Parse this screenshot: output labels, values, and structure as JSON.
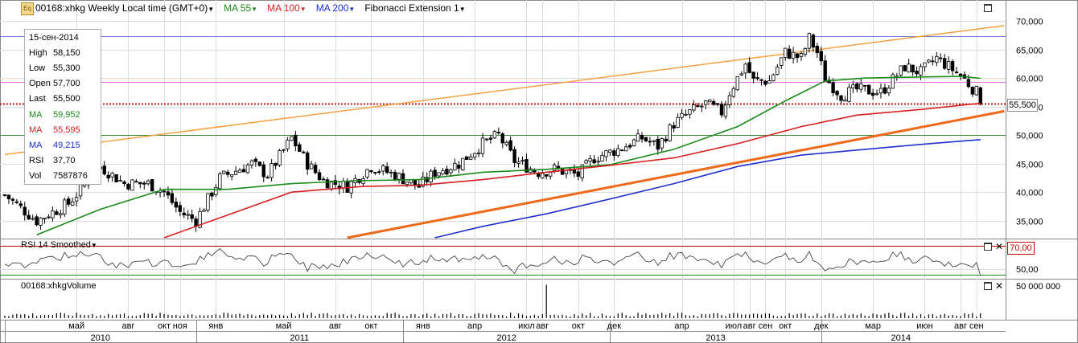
{
  "header": {
    "symbol_title": "00168:xhkg Weekly Local time (GMT+0)",
    "ma55_label": "MA 55",
    "ma100_label": "MA 100",
    "ma200_label": "MA 200",
    "fib_label": "Fibonacci Extension 1",
    "logo_text": "Eq"
  },
  "infobox": {
    "date": "15-сен-2014",
    "rows": [
      {
        "k": "High",
        "v": "58,150",
        "color": "#000000"
      },
      {
        "k": "Low",
        "v": "55,300",
        "color": "#000000"
      },
      {
        "k": "Open",
        "v": "57,700",
        "color": "#000000"
      },
      {
        "k": "Last",
        "v": "55,500",
        "color": "#000000"
      },
      {
        "k": "MA",
        "v": "59,952",
        "color": "#1a8a1a"
      },
      {
        "k": "MA",
        "v": "55,595",
        "color": "#d81e1e"
      },
      {
        "k": "MA",
        "v": "49,215",
        "color": "#1f2fd0"
      },
      {
        "k": "RSI",
        "v": "37,70",
        "color": "#000000"
      },
      {
        "k": "Vol",
        "v": "7587876",
        "color": "#000000"
      }
    ]
  },
  "price_marker": "55,500",
  "rsi_panel": {
    "title": "RSI 14 Smoothed",
    "marker": "70,00",
    "ticks": [
      "50,00"
    ]
  },
  "volume_panel": {
    "title": "00168:xhkgVolume",
    "ticks": [
      "50 000 000"
    ]
  },
  "colors": {
    "ma55": "#1a8a1a",
    "ma100": "#d81e1e",
    "ma200": "#1f2fd0",
    "fib_upper": "#f5a040",
    "fib_lower": "#ee6a1a",
    "rsi": "#444444",
    "up": "#ffffff",
    "down": "#000000"
  },
  "chart_data": [
    {
      "type": "candlestick",
      "title": "00168:xhkg Weekly",
      "ylim": [
        32000,
        72000
      ],
      "y_ticks": [
        "35,000",
        "40,000",
        "45,000",
        "50,000",
        "55,000",
        "60,000",
        "65,000",
        "70,000"
      ],
      "y_tick_values": [
        35000,
        40000,
        45000,
        50000,
        55000,
        60000,
        65000,
        70000
      ],
      "x_months": [
        {
          "label": "май",
          "w": 18
        },
        {
          "label": "авг",
          "w": 31
        },
        {
          "label": "окт",
          "w": 40
        },
        {
          "label": "ноя",
          "w": 44
        },
        {
          "label": "янв",
          "w": 53
        },
        {
          "label": "май",
          "w": 70
        },
        {
          "label": "авг",
          "w": 83
        },
        {
          "label": "окт",
          "w": 92
        },
        {
          "label": "янв",
          "w": 105
        },
        {
          "label": "апр",
          "w": 118
        },
        {
          "label": "июл",
          "w": 131
        },
        {
          "label": "авг",
          "w": 135
        },
        {
          "label": "окт",
          "w": 144
        },
        {
          "label": "дек",
          "w": 153
        },
        {
          "label": "апр",
          "w": 170
        },
        {
          "label": "июл",
          "w": 183
        },
        {
          "label": "авг",
          "w": 187
        },
        {
          "label": "сен",
          "w": 191
        },
        {
          "label": "окт",
          "w": 196
        },
        {
          "label": "дек",
          "w": 205
        },
        {
          "label": "мар",
          "w": 218
        },
        {
          "label": "июн",
          "w": 231
        },
        {
          "label": "авг",
          "w": 240
        },
        {
          "label": "сен",
          "w": 244
        }
      ],
      "x_years": [
        {
          "label": "2010",
          "w0": 0,
          "w1": 48
        },
        {
          "label": "2011",
          "w0": 48,
          "w1": 100
        },
        {
          "label": "2012",
          "w0": 100,
          "w1": 152
        },
        {
          "label": "2013",
          "w0": 152,
          "w1": 205
        },
        {
          "label": "2014",
          "w0": 205,
          "w1": 245
        }
      ],
      "close_anchors": [
        [
          0,
          39500
        ],
        [
          8,
          35000
        ],
        [
          16,
          38000
        ],
        [
          24,
          44500
        ],
        [
          30,
          41500
        ],
        [
          36,
          41500
        ],
        [
          40,
          40000
        ],
        [
          44,
          36500
        ],
        [
          48,
          35000
        ],
        [
          54,
          42500
        ],
        [
          62,
          45000
        ],
        [
          66,
          43000
        ],
        [
          72,
          49500
        ],
        [
          76,
          45000
        ],
        [
          80,
          42000
        ],
        [
          86,
          41000
        ],
        [
          92,
          44500
        ],
        [
          98,
          43000
        ],
        [
          104,
          41000
        ],
        [
          108,
          43500
        ],
        [
          114,
          45000
        ],
        [
          120,
          48500
        ],
        [
          124,
          50000
        ],
        [
          128,
          45500
        ],
        [
          134,
          43500
        ],
        [
          138,
          44000
        ],
        [
          144,
          43000
        ],
        [
          148,
          46000
        ],
        [
          154,
          47500
        ],
        [
          160,
          49500
        ],
        [
          164,
          48000
        ],
        [
          168,
          52000
        ],
        [
          172,
          54000
        ],
        [
          176,
          55500
        ],
        [
          180,
          54000
        ],
        [
          182,
          57500
        ],
        [
          186,
          62500
        ],
        [
          188,
          59500
        ],
        [
          192,
          59500
        ],
        [
          196,
          64500
        ],
        [
          200,
          63500
        ],
        [
          202,
          67000
        ],
        [
          204,
          64500
        ],
        [
          206,
          60000
        ],
        [
          210,
          57000
        ],
        [
          214,
          58000
        ],
        [
          220,
          57500
        ],
        [
          226,
          62000
        ],
        [
          230,
          61000
        ],
        [
          234,
          63500
        ],
        [
          238,
          61500
        ],
        [
          240,
          60500
        ],
        [
          242,
          59000
        ],
        [
          244,
          57500
        ],
        [
          245,
          55500
        ]
      ],
      "ma_series": [
        {
          "name": "MA 55",
          "points": [
            [
              8,
              32500
            ],
            [
              24,
              37000
            ],
            [
              40,
              40500
            ],
            [
              56,
              40500
            ],
            [
              72,
              41500
            ],
            [
              88,
              42000
            ],
            [
              104,
              42200
            ],
            [
              120,
              43500
            ],
            [
              136,
              44000
            ],
            [
              152,
              44800
            ],
            [
              168,
              47500
            ],
            [
              184,
              51500
            ],
            [
              196,
              56000
            ],
            [
              206,
              59500
            ],
            [
              216,
              60000
            ],
            [
              230,
              60200
            ],
            [
              240,
              60300
            ],
            [
              245,
              59952
            ]
          ]
        },
        {
          "name": "MA 100",
          "points": [
            [
              40,
              32000
            ],
            [
              56,
              36000
            ],
            [
              72,
              40000
            ],
            [
              90,
              41000
            ],
            [
              104,
              41200
            ],
            [
              120,
              42200
            ],
            [
              136,
              43500
            ],
            [
              152,
              44700
            ],
            [
              168,
              46000
            ],
            [
              184,
              48500
            ],
            [
              200,
              51500
            ],
            [
              214,
              53500
            ],
            [
              230,
              54500
            ],
            [
              245,
              55595
            ]
          ]
        },
        {
          "name": "MA 200",
          "points": [
            [
              108,
              32000
            ],
            [
              120,
              34000
            ],
            [
              136,
              36200
            ],
            [
              152,
              38800
            ],
            [
              168,
              41500
            ],
            [
              184,
              44500
            ],
            [
              200,
              46500
            ],
            [
              216,
              47500
            ],
            [
              232,
              48500
            ],
            [
              245,
              49215
            ]
          ]
        }
      ],
      "fibonacci": [
        {
          "from": [
            0,
            46600
          ],
          "to": [
            251,
            69200
          ]
        },
        {
          "from": [
            86,
            32000
          ],
          "to": [
            251,
            54200
          ]
        }
      ],
      "horizontal_levels": [
        {
          "value": 67300,
          "color": "#6e7cd4"
        },
        {
          "value": 59300,
          "color": "#e070e0"
        },
        {
          "value": 55500,
          "color": "#c01818",
          "dotted": true
        },
        {
          "value": 50000,
          "color": "#3a8a3a"
        }
      ],
      "last_close": 55500
    },
    {
      "type": "line",
      "title": "RSI 14 Smoothed",
      "ylim": [
        42,
        75
      ],
      "y_tick_values": [
        50,
        70
      ],
      "last": 37.7
    },
    {
      "type": "bar",
      "title": "00168:xhkgVolume",
      "y_tick_values": [
        50000000
      ],
      "spike_week": 136,
      "spike_value": 52000000,
      "last": 7587876
    }
  ]
}
